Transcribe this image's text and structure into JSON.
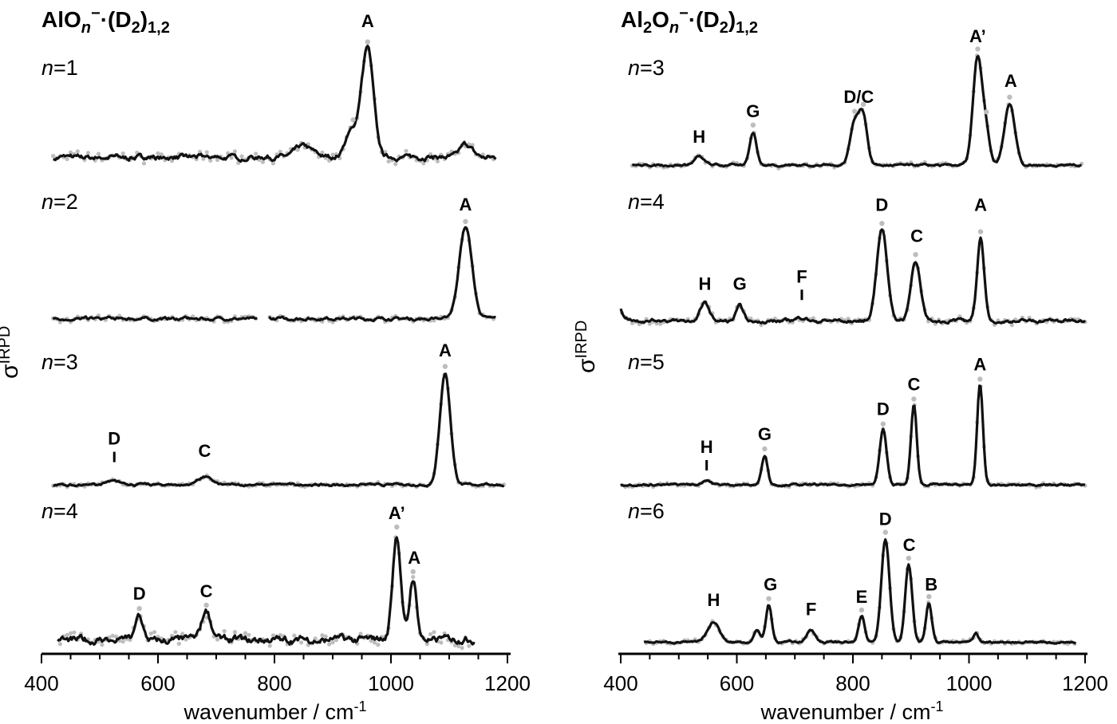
{
  "chart_data": [
    {
      "type": "line",
      "panel": "left",
      "title": "AlO",
      "title_sub": "n",
      "title_charge": "−",
      "title_rest": "·(D",
      "title_sub2": "2",
      "title_close": ")",
      "title_sub3": "1,2",
      "xlabel": "wavenumber / cm",
      "xlabel_sup": "-1",
      "ylabel": "σ",
      "ylabel_sub": "IRPD",
      "xlim": [
        400,
        1200
      ],
      "xticks": [
        "400",
        "600",
        "800",
        "1000",
        "1200"
      ],
      "spectra": [
        {
          "label_var": "n",
          "label_eq": "=1",
          "baseline": 0.02,
          "noise": 0.03,
          "x_range": [
            420,
            1180
          ],
          "peaks": [
            {
              "x": 960,
              "h": 1.0,
              "w": 10
            },
            {
              "x": 935,
              "h": 0.25,
              "w": 12
            },
            {
              "x": 850,
              "h": 0.1,
              "w": 15
            },
            {
              "x": 1130,
              "h": 0.12,
              "w": 10
            }
          ],
          "labels": [
            {
              "x": 960,
              "text": "A",
              "y": 1.25
            }
          ]
        },
        {
          "label_var": "n",
          "label_eq": "=2",
          "baseline": 0.02,
          "noise": 0.02,
          "x_range": [
            420,
            1180
          ],
          "gap": [
            770,
            790
          ],
          "peaks": [
            {
              "x": 1128,
              "h": 1.0,
              "w": 11
            }
          ],
          "labels": [
            {
              "x": 1128,
              "text": "A",
              "y": 1.2
            }
          ]
        },
        {
          "label_var": "n",
          "label_eq": "=3",
          "baseline": 0.0,
          "noise": 0.012,
          "x_range": [
            420,
            1195
          ],
          "peaks": [
            {
              "x": 1093,
              "h": 1.0,
              "w": 9
            },
            {
              "x": 680,
              "h": 0.07,
              "w": 12
            },
            {
              "x": 525,
              "h": 0.03,
              "w": 15
            }
          ],
          "labels": [
            {
              "x": 1093,
              "text": "A",
              "y": 1.15
            },
            {
              "x": 680,
              "text": "C",
              "y": 0.25
            },
            {
              "x": 525,
              "text": "D",
              "y": 0.36,
              "tick": true
            }
          ]
        },
        {
          "label_var": "n",
          "label_eq": "=4",
          "baseline": 0.04,
          "noise": 0.04,
          "x_range": [
            428,
            1145
          ],
          "peaks": [
            {
              "x": 1010,
              "h": 0.95,
              "w": 7
            },
            {
              "x": 1038,
              "h": 0.55,
              "w": 6
            },
            {
              "x": 683,
              "h": 0.25,
              "w": 8
            },
            {
              "x": 568,
              "h": 0.22,
              "w": 6
            }
          ],
          "labels": [
            {
              "x": 1010,
              "text": "A’",
              "y": 1.12
            },
            {
              "x": 1040,
              "text": "A",
              "y": 0.72
            },
            {
              "x": 683,
              "text": "C",
              "y": 0.42
            },
            {
              "x": 568,
              "text": "D",
              "y": 0.4
            }
          ]
        }
      ]
    },
    {
      "type": "line",
      "panel": "right",
      "title": "Al",
      "title_sub0": "2",
      "title_o": "O",
      "title_sub": "n",
      "title_charge": "−",
      "title_rest": "·(D",
      "title_sub2": "2",
      "title_close": ")",
      "title_sub3": "1,2",
      "xlabel": "wavenumber / cm",
      "xlabel_sup": "-1",
      "ylabel": "σ",
      "ylabel_sub": "IRPD",
      "xlim": [
        400,
        1200
      ],
      "xticks": [
        "400",
        "600",
        "800",
        "1000",
        "1200"
      ],
      "spectra": [
        {
          "label_var": "n",
          "label_eq": "=3",
          "baseline": 0.02,
          "noise": 0.012,
          "x_range": [
            420,
            1195
          ],
          "peaks": [
            {
              "x": 1015,
              "h": 0.97,
              "w": 8
            },
            {
              "x": 1030,
              "h": 0.25,
              "w": 6
            },
            {
              "x": 1070,
              "h": 0.55,
              "w": 9
            },
            {
              "x": 803,
              "h": 0.38,
              "w": 8
            },
            {
              "x": 818,
              "h": 0.42,
              "w": 7
            },
            {
              "x": 628,
              "h": 0.3,
              "w": 6
            },
            {
              "x": 535,
              "h": 0.08,
              "w": 8
            }
          ],
          "labels": [
            {
              "x": 1015,
              "text": "A’",
              "y": 1.12
            },
            {
              "x": 1072,
              "text": "A",
              "y": 0.72
            },
            {
              "x": 810,
              "text": "D/C",
              "y": 0.58
            },
            {
              "x": 628,
              "text": "G",
              "y": 0.45
            },
            {
              "x": 535,
              "text": "H",
              "y": 0.22
            }
          ]
        },
        {
          "label_var": "n",
          "label_eq": "=4",
          "baseline": 0.02,
          "noise": 0.02,
          "x_range": [
            400,
            1200
          ],
          "rise_left": 0.12,
          "peaks": [
            {
              "x": 850,
              "h": 0.88,
              "w": 9
            },
            {
              "x": 908,
              "h": 0.58,
              "w": 8
            },
            {
              "x": 1020,
              "h": 0.8,
              "w": 6
            },
            {
              "x": 545,
              "h": 0.17,
              "w": 8
            },
            {
              "x": 605,
              "h": 0.14,
              "w": 6
            },
            {
              "x": 712,
              "h": 0.03,
              "w": 8
            }
          ],
          "labels": [
            {
              "x": 850,
              "text": "D",
              "y": 1.08
            },
            {
              "x": 910,
              "text": "C",
              "y": 0.78
            },
            {
              "x": 1020,
              "text": "A",
              "y": 1.08
            },
            {
              "x": 545,
              "text": "H",
              "y": 0.32
            },
            {
              "x": 605,
              "text": "G",
              "y": 0.32
            },
            {
              "x": 712,
              "text": "F",
              "y": 0.39,
              "tick": true
            }
          ]
        },
        {
          "label_var": "n",
          "label_eq": "=5",
          "baseline": 0.0,
          "noise": 0.012,
          "x_range": [
            400,
            1200
          ],
          "peaks": [
            {
              "x": 1019,
              "h": 1.0,
              "w": 5
            },
            {
              "x": 905,
              "h": 0.8,
              "w": 5
            },
            {
              "x": 852,
              "h": 0.55,
              "w": 6
            },
            {
              "x": 648,
              "h": 0.3,
              "w": 5
            },
            {
              "x": 548,
              "h": 0.05,
              "w": 7
            }
          ],
          "labels": [
            {
              "x": 1019,
              "text": "A",
              "y": 1.15
            },
            {
              "x": 905,
              "text": "C",
              "y": 0.95
            },
            {
              "x": 852,
              "text": "D",
              "y": 0.7
            },
            {
              "x": 648,
              "text": "G",
              "y": 0.45
            },
            {
              "x": 548,
              "text": "H",
              "y": 0.32,
              "tick": true
            }
          ]
        },
        {
          "label_var": "n",
          "label_eq": "=6",
          "baseline": 0.02,
          "noise": 0.012,
          "x_range": [
            440,
            1185
          ],
          "peaks": [
            {
              "x": 856,
              "h": 1.0,
              "w": 7
            },
            {
              "x": 896,
              "h": 0.75,
              "w": 6
            },
            {
              "x": 931,
              "h": 0.38,
              "w": 5
            },
            {
              "x": 815,
              "h": 0.25,
              "w": 5
            },
            {
              "x": 728,
              "h": 0.12,
              "w": 7
            },
            {
              "x": 655,
              "h": 0.36,
              "w": 5
            },
            {
              "x": 635,
              "h": 0.12,
              "w": 5
            },
            {
              "x": 560,
              "h": 0.2,
              "w": 10
            },
            {
              "x": 1012,
              "h": 0.08,
              "w": 4
            }
          ],
          "labels": [
            {
              "x": 856,
              "text": "D",
              "y": 1.15
            },
            {
              "x": 897,
              "text": "C",
              "y": 0.9
            },
            {
              "x": 935,
              "text": "B",
              "y": 0.52
            },
            {
              "x": 815,
              "text": "E",
              "y": 0.4
            },
            {
              "x": 728,
              "text": "F",
              "y": 0.28
            },
            {
              "x": 658,
              "text": "G",
              "y": 0.52
            },
            {
              "x": 560,
              "text": "H",
              "y": 0.37
            }
          ]
        }
      ]
    }
  ]
}
